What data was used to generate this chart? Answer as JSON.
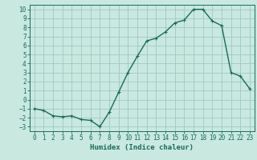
{
  "x": [
    0,
    1,
    2,
    3,
    4,
    5,
    6,
    7,
    8,
    9,
    10,
    11,
    12,
    13,
    14,
    15,
    16,
    17,
    18,
    19,
    20,
    21,
    22,
    23
  ],
  "y": [
    -1,
    -1.2,
    -1.8,
    -1.9,
    -1.8,
    -2.2,
    -2.3,
    -3.0,
    -1.4,
    0.8,
    3.0,
    4.8,
    6.5,
    6.8,
    7.5,
    8.5,
    8.8,
    10.0,
    10.0,
    8.7,
    8.2,
    3.0,
    2.6,
    1.2
  ],
  "line_color": "#1a6b5a",
  "marker": "+",
  "bg_color": "#c8e8e0",
  "grid_color": "#a0c8c0",
  "xlabel": "Humidex (Indice chaleur)",
  "xlim": [
    -0.5,
    23.5
  ],
  "ylim": [
    -3.5,
    10.5
  ],
  "xticks": [
    0,
    1,
    2,
    3,
    4,
    5,
    6,
    7,
    8,
    9,
    10,
    11,
    12,
    13,
    14,
    15,
    16,
    17,
    18,
    19,
    20,
    21,
    22,
    23
  ],
  "yticks": [
    -3,
    -2,
    -1,
    0,
    1,
    2,
    3,
    4,
    5,
    6,
    7,
    8,
    9,
    10
  ],
  "axis_color": "#1a6b5a",
  "label_fontsize": 6.5,
  "tick_fontsize": 5.5,
  "linewidth": 1.0,
  "markersize": 3,
  "markeredgewidth": 0.8
}
